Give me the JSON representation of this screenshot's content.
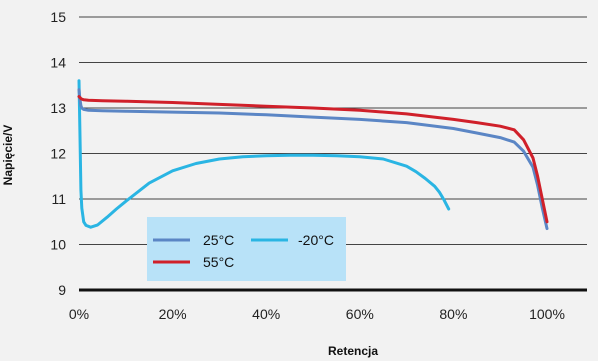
{
  "chart_data": {
    "type": "line",
    "xlabel": "Retencja",
    "ylabel": "Napięcie/V",
    "xlim": [
      0,
      100
    ],
    "ylim": [
      9,
      15
    ],
    "x_ticks": [
      "0%",
      "20%",
      "40%",
      "60%",
      "80%",
      "100%"
    ],
    "y_ticks": [
      "9",
      "10",
      "11",
      "12",
      "13",
      "14",
      "15"
    ],
    "grid": "horizontal",
    "legend_position": "bottom-left",
    "series": [
      {
        "name": "25°C",
        "color": "#5b86c5",
        "x": [
          0,
          0.2,
          0.4,
          0.6,
          1,
          2,
          5,
          10,
          20,
          30,
          40,
          50,
          60,
          70,
          80,
          85,
          90,
          93,
          95,
          97,
          98,
          99,
          100
        ],
        "y": [
          13.4,
          13.2,
          13.05,
          13.0,
          12.97,
          12.95,
          12.94,
          12.93,
          12.91,
          12.89,
          12.85,
          12.8,
          12.75,
          12.68,
          12.55,
          12.45,
          12.35,
          12.25,
          12.05,
          11.7,
          11.3,
          10.8,
          10.35
        ]
      },
      {
        "name": "55°C",
        "color": "#d0202a",
        "x": [
          0,
          0.5,
          1,
          2,
          5,
          10,
          20,
          30,
          40,
          50,
          60,
          70,
          80,
          85,
          90,
          93,
          95,
          97,
          98,
          99,
          100
        ],
        "y": [
          13.25,
          13.2,
          13.18,
          13.17,
          13.16,
          13.15,
          13.12,
          13.08,
          13.04,
          13.0,
          12.95,
          12.87,
          12.75,
          12.68,
          12.6,
          12.52,
          12.3,
          11.9,
          11.5,
          11.0,
          10.5
        ]
      },
      {
        "name": "-20°C",
        "color": "#2ab5e3",
        "x": [
          0,
          0.2,
          0.4,
          0.6,
          1,
          1.5,
          2.5,
          4,
          6,
          8,
          10,
          15,
          20,
          25,
          30,
          35,
          40,
          45,
          50,
          55,
          60,
          65,
          70,
          72,
          74,
          76,
          77,
          78,
          79
        ],
        "y": [
          13.6,
          12.5,
          11.2,
          10.8,
          10.5,
          10.42,
          10.38,
          10.43,
          10.6,
          10.78,
          10.95,
          11.35,
          11.62,
          11.78,
          11.88,
          11.93,
          11.95,
          11.96,
          11.96,
          11.95,
          11.93,
          11.88,
          11.72,
          11.6,
          11.45,
          11.28,
          11.15,
          10.98,
          10.78
        ]
      }
    ]
  }
}
